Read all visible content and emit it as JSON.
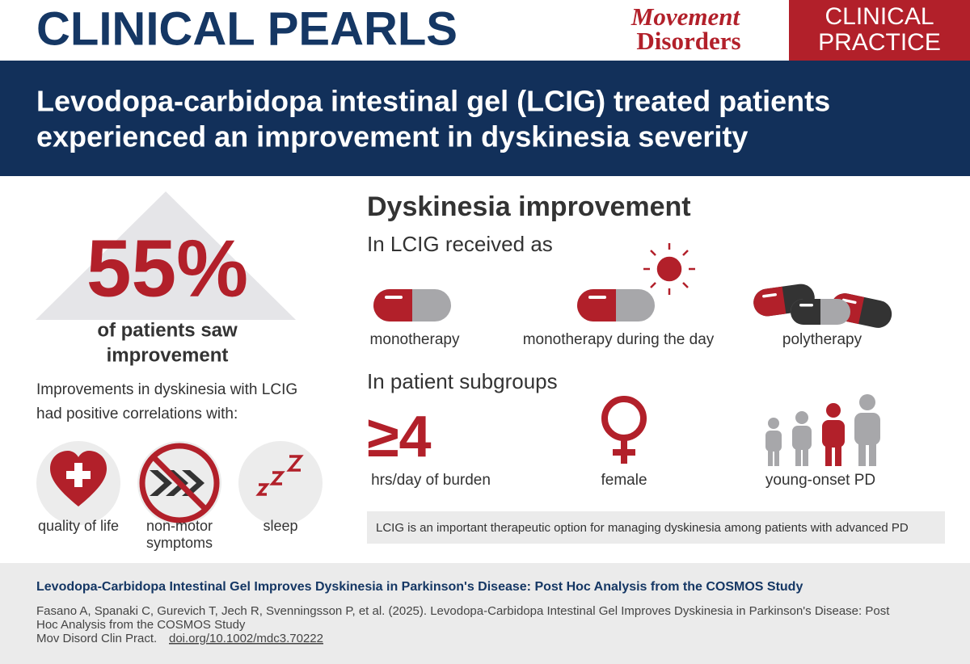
{
  "header": {
    "title": "CLINICAL PEARLS",
    "journal_lines": [
      "Movement",
      "Disorders"
    ],
    "section_lines": [
      "CLINICAL",
      "PRACTICE"
    ]
  },
  "banner": {
    "lines": [
      "Levodopa-carbidopa intestinal gel (LCIG) treated patients",
      "experienced an improvement in dyskinesia severity"
    ]
  },
  "stat": {
    "value": "55%",
    "caption_lines": [
      "of patients saw",
      "improvement"
    ]
  },
  "correlations": {
    "intro_lines": [
      "Improvements in dyskinesia with LCIG",
      "had positive correlations with:"
    ],
    "items": [
      {
        "label_lines": [
          "quality of life"
        ]
      },
      {
        "label_lines": [
          "non-motor",
          "symptoms"
        ]
      },
      {
        "label_lines": [
          "sleep"
        ]
      }
    ]
  },
  "improvement": {
    "heading": "Dyskinesia improvement",
    "delivery_heading": "In LCIG received as",
    "delivery": [
      "monotherapy",
      "monotherapy during the day",
      "polytherapy"
    ],
    "subgroup_heading": "In patient subgroups",
    "subgroups": [
      {
        "value": "≥4",
        "label": "hrs/day of burden"
      },
      {
        "label": "female"
      },
      {
        "label": "young-onset PD"
      }
    ],
    "conclusion": "LCIG is an important therapeutic option for managing dyskinesia among patients with advanced PD"
  },
  "citation": {
    "title": "Levodopa-Carbidopa Intestinal Gel Improves Dyskinesia in Parkinson's Disease: Post Hoc Analysis from the COSMOS Study",
    "lines": [
      "Fasano A, Spanaki C, Gurevich T, Jech R, Svenningsson P, et al. (2025). Levodopa-Carbidopa Intestinal Gel Improves Dyskinesia in Parkinson's Disease: Post",
      "Hoc Analysis from the COSMOS Study"
    ],
    "journal": "Mov Disord Clin Pract.",
    "doi": "doi.org/10.1002/mdc3.70222"
  }
}
